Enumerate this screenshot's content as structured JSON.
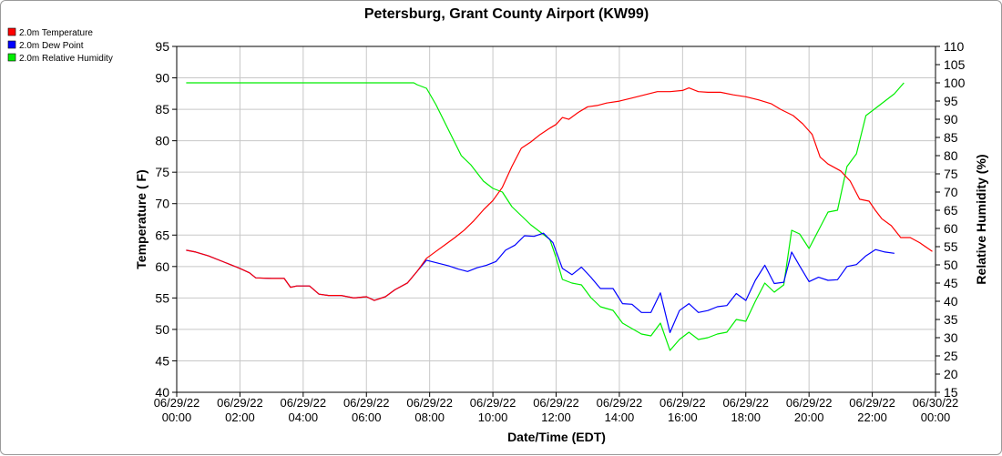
{
  "chart_data": {
    "type": "line",
    "title": "Petersburg, Grant County Airport (KW99)",
    "xlabel": "Date/Time (EDT)",
    "ylabel_left": "Temperature ( F)",
    "ylabel_right": "Relative Humidity (%)",
    "ylim_left": [
      40,
      95
    ],
    "ylim_right": [
      15,
      110
    ],
    "xlim_hours": [
      0,
      24
    ],
    "grid": true,
    "legend_position": "top-left",
    "x_ticks": [
      {
        "h": 0,
        "date": "06/29/22",
        "time": "00:00"
      },
      {
        "h": 2,
        "date": "06/29/22",
        "time": "02:00"
      },
      {
        "h": 4,
        "date": "06/29/22",
        "time": "04:00"
      },
      {
        "h": 6,
        "date": "06/29/22",
        "time": "06:00"
      },
      {
        "h": 8,
        "date": "06/29/22",
        "time": "08:00"
      },
      {
        "h": 10,
        "date": "06/29/22",
        "time": "10:00"
      },
      {
        "h": 12,
        "date": "06/29/22",
        "time": "12:00"
      },
      {
        "h": 14,
        "date": "06/29/22",
        "time": "14:00"
      },
      {
        "h": 16,
        "date": "06/29/22",
        "time": "16:00"
      },
      {
        "h": 18,
        "date": "06/29/22",
        "time": "18:00"
      },
      {
        "h": 20,
        "date": "06/29/22",
        "time": "20:00"
      },
      {
        "h": 22,
        "date": "06/29/22",
        "time": "22:00"
      },
      {
        "h": 24,
        "date": "06/30/22",
        "time": "00:00"
      }
    ],
    "y_ticks_left": [
      40,
      45,
      50,
      55,
      60,
      65,
      70,
      75,
      80,
      85,
      90,
      95
    ],
    "y_ticks_right": [
      15,
      20,
      25,
      30,
      35,
      40,
      45,
      50,
      55,
      60,
      65,
      70,
      75,
      80,
      85,
      90,
      95,
      100,
      105,
      110
    ],
    "series": [
      {
        "name": "2.0m Temperature",
        "color": "#ff0000",
        "axis": "left",
        "points": [
          [
            0.3,
            62.6
          ],
          [
            0.6,
            62.3
          ],
          [
            1.0,
            61.7
          ],
          [
            1.5,
            60.7
          ],
          [
            2.0,
            59.7
          ],
          [
            2.3,
            59.0
          ],
          [
            2.5,
            58.2
          ],
          [
            3.0,
            58.1
          ],
          [
            3.4,
            58.1
          ],
          [
            3.6,
            56.7
          ],
          [
            3.8,
            56.9
          ],
          [
            4.2,
            56.9
          ],
          [
            4.5,
            55.6
          ],
          [
            4.8,
            55.4
          ],
          [
            5.2,
            55.4
          ],
          [
            5.6,
            55.0
          ],
          [
            6.0,
            55.2
          ],
          [
            6.25,
            54.6
          ],
          [
            6.6,
            55.2
          ],
          [
            6.9,
            56.3
          ],
          [
            7.3,
            57.4
          ],
          [
            7.6,
            59.2
          ],
          [
            7.9,
            61.3
          ],
          [
            8.2,
            62.4
          ],
          [
            8.5,
            63.5
          ],
          [
            8.8,
            64.6
          ],
          [
            9.1,
            65.8
          ],
          [
            9.4,
            67.3
          ],
          [
            9.7,
            69.0
          ],
          [
            10.0,
            70.5
          ],
          [
            10.3,
            72.6
          ],
          [
            10.6,
            75.9
          ],
          [
            10.9,
            78.8
          ],
          [
            11.2,
            79.8
          ],
          [
            11.5,
            81.0
          ],
          [
            11.8,
            82.0
          ],
          [
            12.0,
            82.6
          ],
          [
            12.2,
            83.7
          ],
          [
            12.4,
            83.4
          ],
          [
            12.7,
            84.5
          ],
          [
            13.0,
            85.4
          ],
          [
            13.3,
            85.6
          ],
          [
            13.6,
            86.0
          ],
          [
            14.0,
            86.3
          ],
          [
            14.4,
            86.8
          ],
          [
            14.8,
            87.3
          ],
          [
            15.2,
            87.8
          ],
          [
            15.6,
            87.8
          ],
          [
            16.0,
            88.0
          ],
          [
            16.2,
            88.4
          ],
          [
            16.5,
            87.8
          ],
          [
            16.8,
            87.7
          ],
          [
            17.2,
            87.7
          ],
          [
            17.6,
            87.3
          ],
          [
            18.0,
            87.0
          ],
          [
            18.4,
            86.5
          ],
          [
            18.8,
            85.9
          ],
          [
            19.1,
            85.0
          ],
          [
            19.5,
            84.0
          ],
          [
            19.8,
            82.7
          ],
          [
            20.1,
            81.0
          ],
          [
            20.35,
            77.4
          ],
          [
            20.6,
            76.3
          ],
          [
            21.0,
            75.2
          ],
          [
            21.3,
            73.6
          ],
          [
            21.6,
            70.7
          ],
          [
            21.9,
            70.4
          ],
          [
            22.1,
            68.9
          ],
          [
            22.3,
            67.6
          ],
          [
            22.6,
            66.5
          ],
          [
            22.9,
            64.6
          ],
          [
            23.2,
            64.6
          ],
          [
            23.5,
            63.8
          ],
          [
            23.9,
            62.4
          ]
        ]
      },
      {
        "name": "2.0m Dew Point",
        "color": "#0000ff",
        "axis": "left",
        "points": [
          [
            0.3,
            62.6
          ],
          [
            0.6,
            62.3
          ],
          [
            1.0,
            61.7
          ],
          [
            1.5,
            60.7
          ],
          [
            2.0,
            59.7
          ],
          [
            2.3,
            59.0
          ],
          [
            2.5,
            58.2
          ],
          [
            3.0,
            58.1
          ],
          [
            3.4,
            58.1
          ],
          [
            3.6,
            56.7
          ],
          [
            3.8,
            56.9
          ],
          [
            4.2,
            56.9
          ],
          [
            4.5,
            55.6
          ],
          [
            4.8,
            55.4
          ],
          [
            5.2,
            55.4
          ],
          [
            5.6,
            55.0
          ],
          [
            6.0,
            55.2
          ],
          [
            6.25,
            54.6
          ],
          [
            6.6,
            55.2
          ],
          [
            6.9,
            56.3
          ],
          [
            7.3,
            57.4
          ],
          [
            7.6,
            59.2
          ],
          [
            7.9,
            61.0
          ],
          [
            8.3,
            60.5
          ],
          [
            8.6,
            60.1
          ],
          [
            8.9,
            59.6
          ],
          [
            9.2,
            59.2
          ],
          [
            9.5,
            59.8
          ],
          [
            9.8,
            60.2
          ],
          [
            10.1,
            60.8
          ],
          [
            10.4,
            62.6
          ],
          [
            10.7,
            63.4
          ],
          [
            11.0,
            64.9
          ],
          [
            11.3,
            64.8
          ],
          [
            11.6,
            65.3
          ],
          [
            11.9,
            63.8
          ],
          [
            12.2,
            59.7
          ],
          [
            12.5,
            58.7
          ],
          [
            12.8,
            59.9
          ],
          [
            13.1,
            58.3
          ],
          [
            13.4,
            56.5
          ],
          [
            13.8,
            56.5
          ],
          [
            14.1,
            54.1
          ],
          [
            14.4,
            54.0
          ],
          [
            14.7,
            52.7
          ],
          [
            15.0,
            52.7
          ],
          [
            15.3,
            55.8
          ],
          [
            15.6,
            49.5
          ],
          [
            15.9,
            53.0
          ],
          [
            16.2,
            54.1
          ],
          [
            16.5,
            52.7
          ],
          [
            16.8,
            53.0
          ],
          [
            17.1,
            53.6
          ],
          [
            17.4,
            53.8
          ],
          [
            17.7,
            55.7
          ],
          [
            18.0,
            54.6
          ],
          [
            18.3,
            57.8
          ],
          [
            18.6,
            60.2
          ],
          [
            18.9,
            57.3
          ],
          [
            19.2,
            57.5
          ],
          [
            19.45,
            62.3
          ],
          [
            19.7,
            60.1
          ],
          [
            20.0,
            57.6
          ],
          [
            20.3,
            58.3
          ],
          [
            20.6,
            57.8
          ],
          [
            20.9,
            57.9
          ],
          [
            21.2,
            60.0
          ],
          [
            21.5,
            60.3
          ],
          [
            21.8,
            61.7
          ],
          [
            22.1,
            62.7
          ],
          [
            22.4,
            62.3
          ],
          [
            22.7,
            62.1
          ]
        ]
      },
      {
        "name": "2.0m Relative Humidity",
        "color": "#00ee00",
        "axis": "right",
        "points": [
          [
            0.3,
            100
          ],
          [
            2,
            100
          ],
          [
            4,
            100
          ],
          [
            6,
            100
          ],
          [
            7.5,
            100
          ],
          [
            7.6,
            99.5
          ],
          [
            7.9,
            98.5
          ],
          [
            8.2,
            94
          ],
          [
            8.6,
            87
          ],
          [
            9.0,
            80
          ],
          [
            9.3,
            77.5
          ],
          [
            9.7,
            73
          ],
          [
            10.0,
            71
          ],
          [
            10.3,
            70
          ],
          [
            10.6,
            66
          ],
          [
            10.9,
            63.5
          ],
          [
            11.2,
            61
          ],
          [
            11.5,
            59
          ],
          [
            11.8,
            57
          ],
          [
            12.0,
            52
          ],
          [
            12.2,
            46
          ],
          [
            12.5,
            45
          ],
          [
            12.8,
            44.5
          ],
          [
            13.1,
            41
          ],
          [
            13.4,
            38.5
          ],
          [
            13.8,
            37.5
          ],
          [
            14.1,
            34
          ],
          [
            14.4,
            32.5
          ],
          [
            14.7,
            31
          ],
          [
            15.0,
            30.5
          ],
          [
            15.3,
            34
          ],
          [
            15.6,
            26.5
          ],
          [
            15.9,
            29.5
          ],
          [
            16.2,
            31.5
          ],
          [
            16.5,
            29.5
          ],
          [
            16.8,
            30
          ],
          [
            17.1,
            31
          ],
          [
            17.4,
            31.5
          ],
          [
            17.7,
            35
          ],
          [
            18.0,
            34.5
          ],
          [
            18.3,
            40
          ],
          [
            18.6,
            45
          ],
          [
            18.9,
            42.5
          ],
          [
            19.2,
            44.5
          ],
          [
            19.45,
            59.5
          ],
          [
            19.7,
            58.5
          ],
          [
            20.0,
            54.5
          ],
          [
            20.3,
            59.5
          ],
          [
            20.6,
            64.5
          ],
          [
            20.9,
            65
          ],
          [
            21.2,
            77
          ],
          [
            21.5,
            80.5
          ],
          [
            21.8,
            91
          ],
          [
            22.1,
            93
          ],
          [
            22.4,
            95
          ],
          [
            22.7,
            97
          ],
          [
            23.0,
            100
          ]
        ]
      }
    ]
  }
}
